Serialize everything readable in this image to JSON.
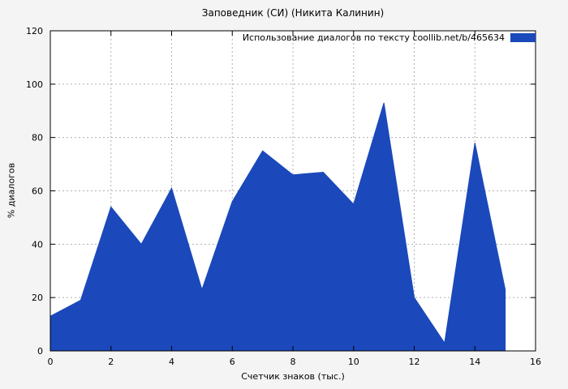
{
  "chart_data": {
    "type": "area",
    "title": "Заповедник (СИ) (Никита Калинин)",
    "legend_label": "Использование диалогов по тексту  coollib.net/b/465634",
    "xlabel": "Счетчик знаков (тыс.)",
    "ylabel": "% диалогов",
    "x": [
      0,
      1,
      2,
      3,
      4,
      5,
      6,
      7,
      8,
      9,
      10,
      11,
      12,
      13,
      14,
      15
    ],
    "values": [
      13,
      19,
      54,
      40,
      61,
      23,
      56,
      75,
      66,
      67,
      55,
      93,
      20,
      3,
      78,
      23
    ],
    "xlim": [
      0,
      16
    ],
    "ylim": [
      0,
      120
    ],
    "xticks": [
      0,
      2,
      4,
      6,
      8,
      10,
      12,
      14,
      16
    ],
    "yticks": [
      0,
      20,
      40,
      60,
      80,
      100,
      120
    ],
    "grid": true,
    "legend_position": "top-right",
    "fill_color": "#1b49bb",
    "grid_color": "#b0b0b0",
    "border_color": "#000000",
    "background": "#f4f4f4",
    "plot_background": "#ffffff"
  }
}
